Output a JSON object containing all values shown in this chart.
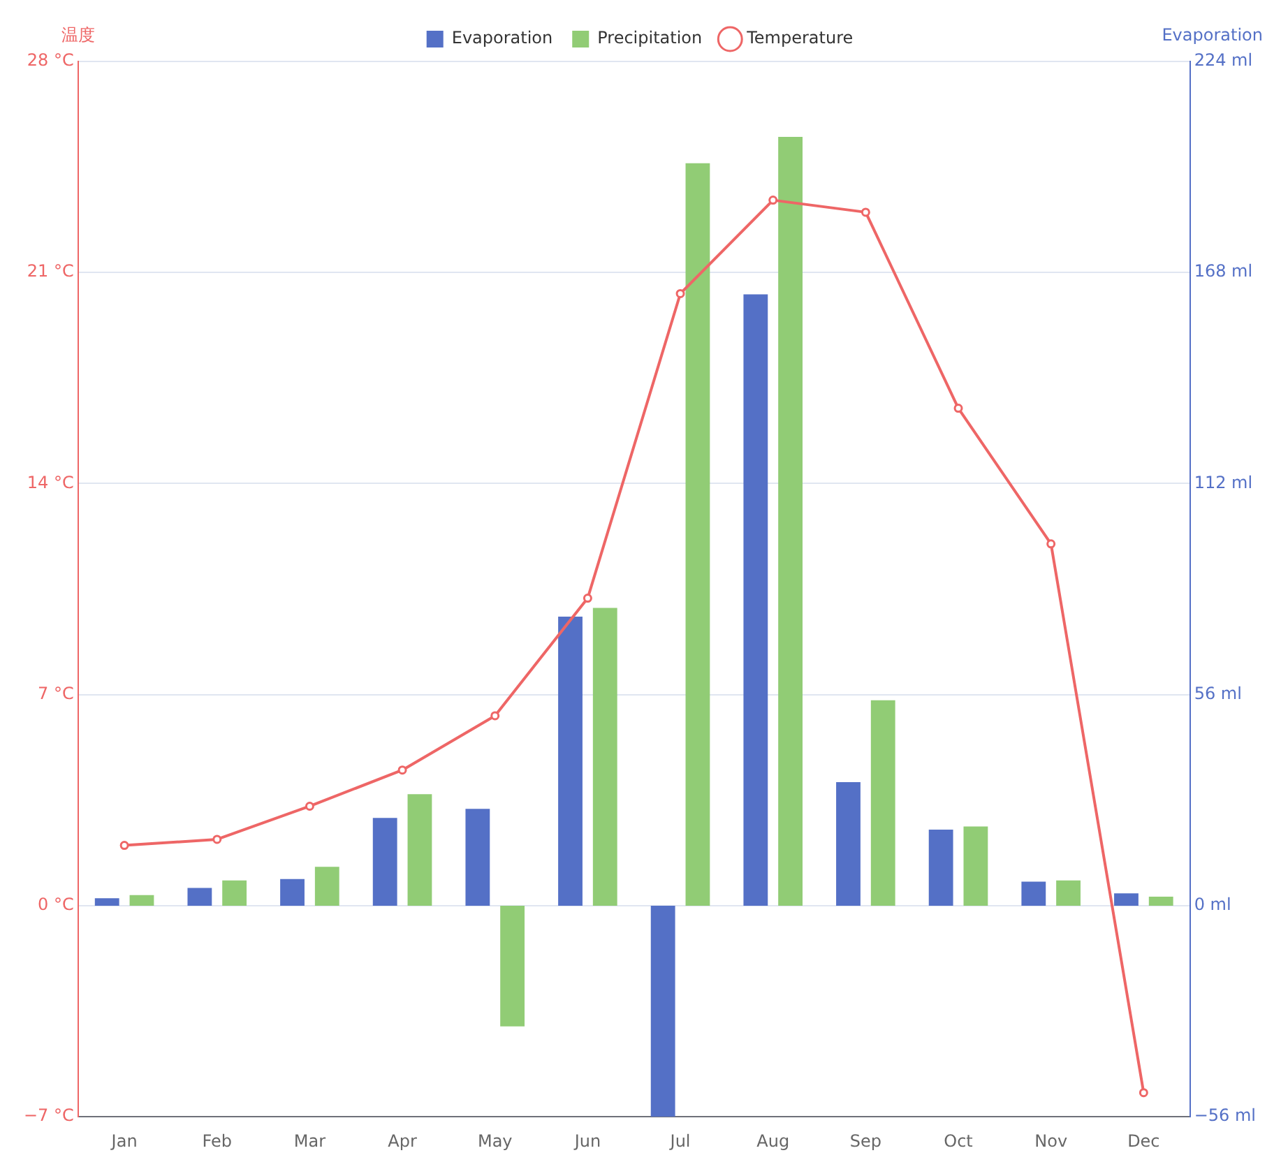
{
  "chart_data": {
    "type": "bar",
    "categories": [
      "Jan",
      "Feb",
      "Mar",
      "Apr",
      "May",
      "Jun",
      "Jul",
      "Aug",
      "Sep",
      "Oct",
      "Nov",
      "Dec"
    ],
    "ylabel": "温度",
    "y2label": "Evaporation",
    "series": [
      {
        "name": "Evaporation",
        "axis": "y2",
        "color": "#5470c6",
        "values": [
          2.0,
          4.7,
          7.1,
          23.3,
          25.7,
          76.7,
          -56,
          162.2,
          32.8,
          20.2,
          6.4,
          3.3
        ]
      },
      {
        "name": "Precipitation",
        "axis": "y2",
        "color": "#91cc75",
        "values": [
          2.8,
          6.7,
          10.3,
          29.6,
          -32,
          79,
          197,
          204,
          54.5,
          21,
          6.7,
          2.4
        ]
      },
      {
        "name": "Temperature",
        "type": "line",
        "color": "#ee6666",
        "values": [
          2.0,
          2.2,
          3.3,
          4.5,
          6.3,
          10.2,
          20.3,
          23.4,
          23.0,
          16.5,
          12.0,
          -6.2
        ]
      }
    ],
    "ylim": [
      -7,
      28
    ],
    "yticks": [
      {
        "value": -7,
        "label": "−7 °C"
      },
      {
        "value": 0,
        "label": "0 °C"
      },
      {
        "value": 7,
        "label": "7 °C"
      },
      {
        "value": 14,
        "label": "14 °C"
      },
      {
        "value": 21,
        "label": "21 °C"
      },
      {
        "value": 28,
        "label": "28 °C"
      }
    ],
    "y2lim": [
      -56,
      224
    ],
    "y2ticks": [
      {
        "value": -56,
        "label": "−56 ml"
      },
      {
        "value": 0,
        "label": "0 ml"
      },
      {
        "value": 56,
        "label": "56 ml"
      },
      {
        "value": 112,
        "label": "112 ml"
      },
      {
        "value": 168,
        "label": "168 ml"
      },
      {
        "value": 224,
        "label": "224 ml"
      }
    ],
    "grid": "y",
    "legend": "top",
    "marker": "circle",
    "line_style": "solid"
  }
}
